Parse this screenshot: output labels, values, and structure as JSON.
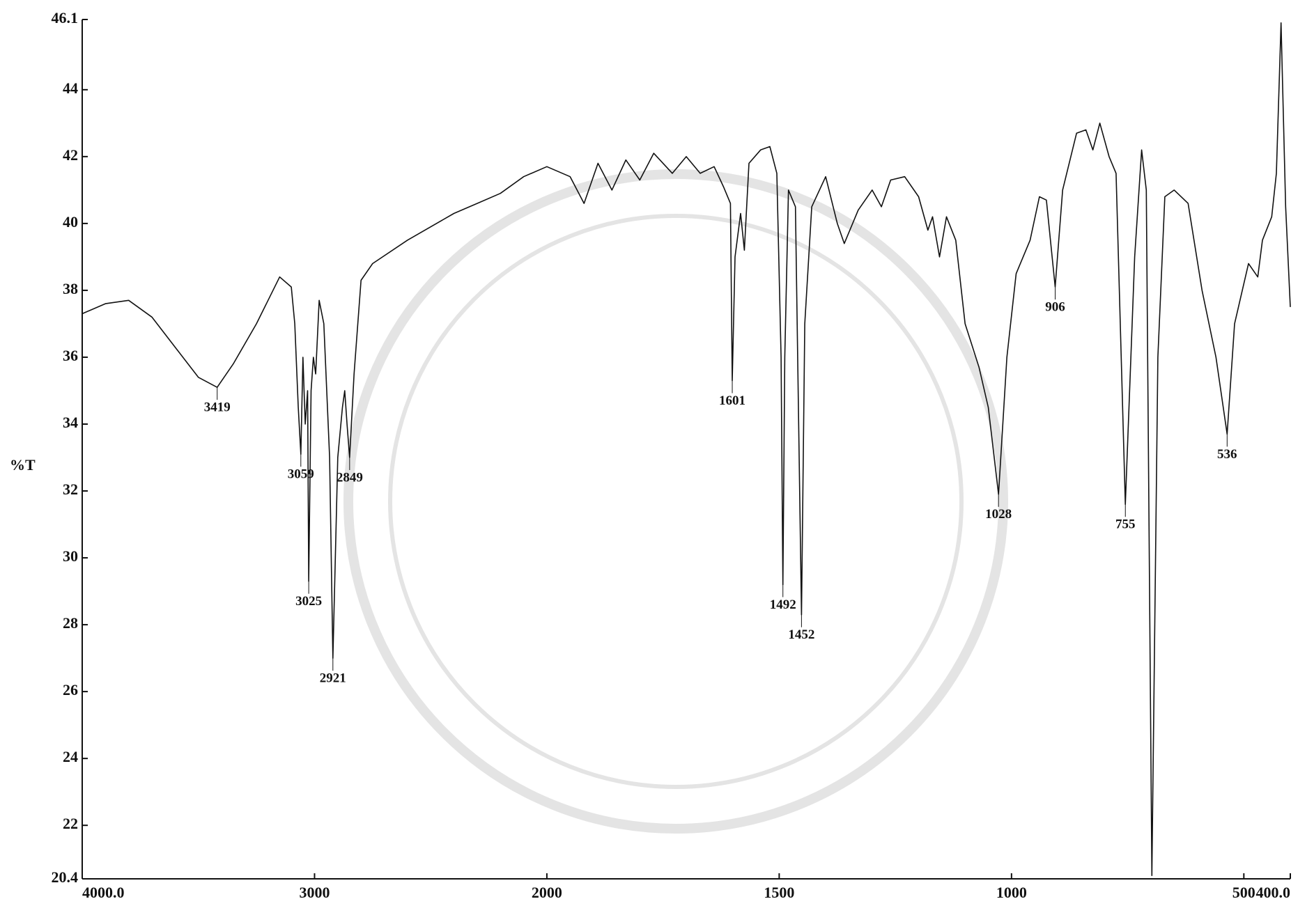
{
  "chart_data": {
    "type": "line",
    "y_label": "%T",
    "xlim": [
      4000,
      400
    ],
    "x_scale_break": 2000,
    "x_scale_expansion_below_break": 2,
    "ylim": [
      20.4,
      46.1
    ],
    "xticks": [
      {
        "value": 4000,
        "label": "4000.0"
      },
      3000,
      2000,
      1500,
      1000,
      500,
      {
        "value": 400,
        "label": "400.0"
      }
    ],
    "yticks": [
      46.1,
      44,
      42,
      40,
      38,
      36,
      34,
      32,
      30,
      28,
      26,
      24,
      22,
      20.4
    ],
    "x": [
      4000,
      3900,
      3800,
      3700,
      3600,
      3500,
      3419,
      3350,
      3250,
      3150,
      3100,
      3085,
      3070,
      3059,
      3050,
      3040,
      3030,
      3025,
      3015,
      3005,
      2995,
      2980,
      2960,
      2935,
      2921,
      2900,
      2880,
      2870,
      2860,
      2849,
      2830,
      2800,
      2750,
      2600,
      2400,
      2300,
      2200,
      2100,
      2000,
      1950,
      1920,
      1890,
      1860,
      1830,
      1800,
      1770,
      1730,
      1700,
      1670,
      1640,
      1620,
      1605,
      1601,
      1595,
      1583,
      1575,
      1565,
      1540,
      1520,
      1505,
      1496,
      1492,
      1488,
      1480,
      1465,
      1452,
      1445,
      1430,
      1400,
      1375,
      1360,
      1330,
      1300,
      1280,
      1260,
      1230,
      1200,
      1180,
      1170,
      1155,
      1140,
      1120,
      1100,
      1070,
      1050,
      1028,
      1010,
      990,
      960,
      940,
      925,
      906,
      890,
      860,
      840,
      825,
      810,
      790,
      775,
      755,
      735,
      720,
      710,
      698,
      685,
      670,
      650,
      620,
      590,
      560,
      536,
      520,
      490,
      470,
      460,
      440,
      430,
      420,
      410,
      400
    ],
    "series": [
      {
        "color": "#111111",
        "values": [
          37.3,
          37.6,
          37.7,
          37.2,
          36.3,
          35.4,
          35.1,
          35.8,
          37.0,
          38.4,
          38.1,
          37.0,
          34.5,
          33.1,
          36.0,
          34.0,
          35.0,
          29.3,
          35.0,
          36.0,
          35.5,
          37.7,
          37.0,
          33.0,
          27.0,
          33.0,
          34.5,
          35.0,
          34.0,
          33.0,
          35.5,
          38.3,
          38.8,
          39.5,
          40.3,
          40.6,
          40.9,
          41.4,
          41.7,
          41.4,
          40.6,
          41.8,
          41.0,
          41.9,
          41.3,
          42.1,
          41.5,
          42.0,
          41.5,
          41.7,
          41.1,
          40.6,
          35.3,
          39.0,
          40.3,
          39.2,
          41.8,
          42.2,
          42.3,
          41.5,
          36.0,
          29.2,
          36.0,
          41.0,
          40.5,
          28.3,
          37.0,
          40.5,
          41.4,
          40.0,
          39.4,
          40.4,
          41.0,
          40.5,
          41.3,
          41.4,
          40.8,
          39.8,
          40.2,
          39.0,
          40.2,
          39.5,
          37.0,
          35.7,
          34.5,
          31.9,
          36.0,
          38.5,
          39.5,
          40.8,
          40.7,
          38.1,
          41.0,
          42.7,
          42.8,
          42.2,
          43.0,
          42.0,
          41.5,
          31.6,
          39.0,
          42.2,
          41.0,
          20.5,
          36.0,
          40.8,
          41.0,
          40.6,
          38.0,
          36.0,
          33.7,
          37.0,
          38.8,
          38.4,
          39.5,
          40.2,
          41.5,
          46.0,
          40.5,
          37.5
        ]
      }
    ],
    "peaks": {
      "x": [
        3419,
        3059,
        3025,
        2921,
        2849,
        1601,
        1492,
        1452,
        1028,
        906,
        755,
        536
      ],
      "y": [
        35.1,
        33.1,
        29.3,
        27.0,
        33.0,
        35.3,
        29.2,
        28.3,
        31.9,
        38.1,
        31.6,
        33.7
      ]
    }
  }
}
